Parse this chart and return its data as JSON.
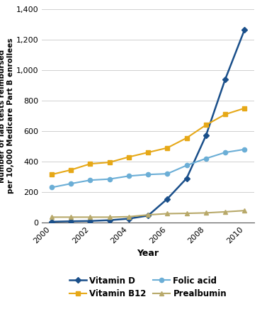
{
  "years": [
    2000,
    2001,
    2002,
    2003,
    2004,
    2005,
    2006,
    2007,
    2008,
    2009,
    2010
  ],
  "vitamin_d": [
    5,
    8,
    10,
    15,
    25,
    45,
    155,
    290,
    570,
    940,
    1265
  ],
  "folic_acid": [
    230,
    255,
    278,
    285,
    305,
    315,
    320,
    375,
    420,
    460,
    480
  ],
  "vitamin_b12": [
    315,
    345,
    385,
    395,
    430,
    460,
    490,
    555,
    640,
    710,
    750
  ],
  "prealbumin": [
    35,
    35,
    35,
    35,
    38,
    50,
    58,
    60,
    63,
    70,
    78
  ],
  "series": [
    {
      "label": "Vitamin D",
      "key": "vitamin_d",
      "color": "#1a4f8a",
      "marker": "D",
      "markersize": 4.5,
      "linewidth": 1.8
    },
    {
      "label": "Folic acid",
      "key": "folic_acid",
      "color": "#6baed6",
      "marker": "o",
      "markersize": 4.5,
      "linewidth": 1.5
    },
    {
      "label": "Vitamin B12",
      "key": "vitamin_b12",
      "color": "#e6a817",
      "marker": "s",
      "markersize": 4.5,
      "linewidth": 1.5
    },
    {
      "label": "Prealbumin",
      "key": "prealbumin",
      "color": "#b8a96a",
      "marker": "^",
      "markersize": 4.5,
      "linewidth": 1.5
    }
  ],
  "legend_order": [
    0,
    2,
    1,
    3
  ],
  "xlabel": "Year",
  "ylabel": "Number of lab tests reimbursed\nper 10,000 Medicare Part B enrollees",
  "ylim": [
    0,
    1400
  ],
  "yticks": [
    0,
    200,
    400,
    600,
    800,
    1000,
    1200,
    1400
  ],
  "xticks": [
    2000,
    2002,
    2004,
    2006,
    2008,
    2010
  ],
  "background_color": "#ffffff",
  "grid_color": "#d0d0d0"
}
